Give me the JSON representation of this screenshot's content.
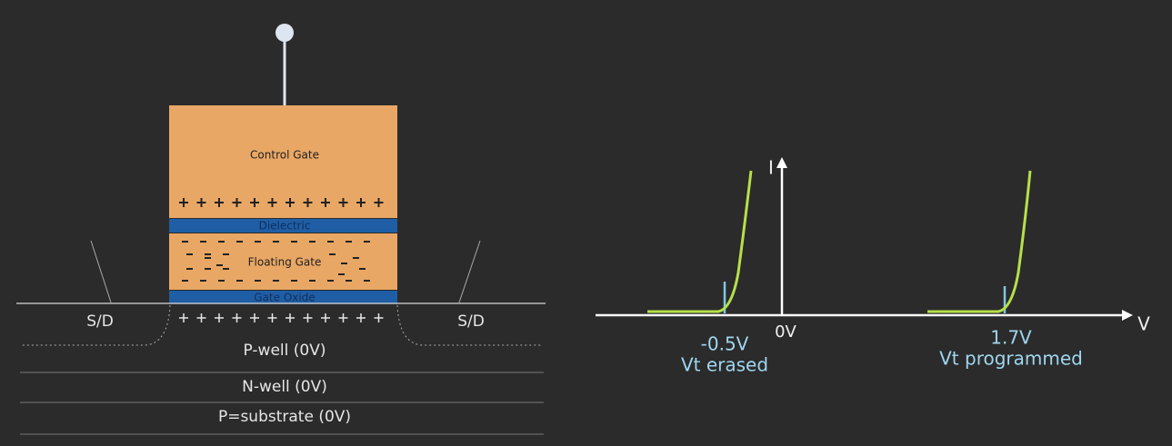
{
  "cell": {
    "control_gate": "Control Gate",
    "dielectric": "Dielectric",
    "floating_gate": "Floating Gate",
    "gate_oxide": "Gate Oxide",
    "source_drain_left": "S/D",
    "source_drain_right": "S/D",
    "layers": [
      "P-well (0V)",
      "N-well (0V)",
      "P=substrate (0V)"
    ]
  },
  "graph": {
    "y_axis": "I",
    "x_axis": "V",
    "origin": "0V",
    "erased": {
      "voltage": "-0.5V",
      "label": "Vt erased"
    },
    "programmed": {
      "voltage": "1.7V",
      "label": "Vt programmed"
    }
  }
}
